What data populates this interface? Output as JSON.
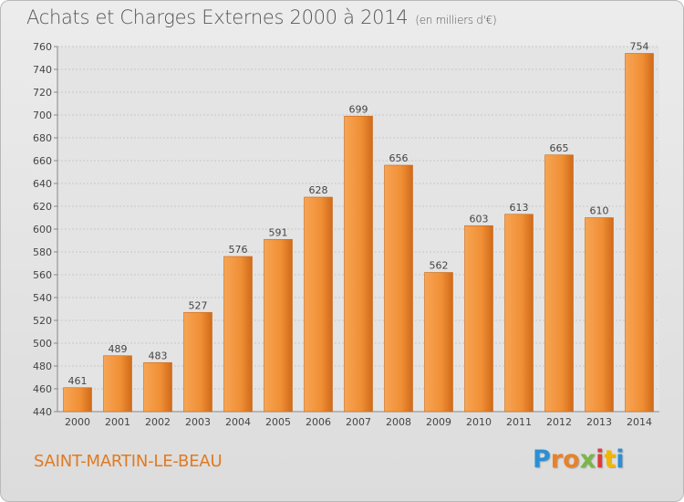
{
  "chart_data": {
    "type": "bar",
    "title": "Achats et Charges Externes 2000 à 2014",
    "subtitle": "(en milliers d'€)",
    "categories": [
      "2000",
      "2001",
      "2002",
      "2003",
      "2004",
      "2005",
      "2006",
      "2007",
      "2008",
      "2009",
      "2010",
      "2011",
      "2012",
      "2013",
      "2014"
    ],
    "values": [
      461,
      489,
      483,
      527,
      576,
      591,
      628,
      699,
      656,
      562,
      603,
      613,
      665,
      610,
      754
    ],
    "ylim": [
      440,
      760
    ],
    "yticks": [
      440,
      460,
      480,
      500,
      520,
      540,
      560,
      580,
      600,
      620,
      640,
      660,
      680,
      700,
      720,
      740,
      760
    ],
    "grid": true,
    "bar_color": "#f0953a"
  },
  "location": "SAINT-MARTIN-LE-BEAU",
  "logo": {
    "letters": [
      "P",
      "r",
      "o",
      "x",
      "i",
      "t",
      "i"
    ],
    "colors": [
      "#2b8fd6",
      "#e8822a",
      "#e8822a",
      "#7ab648",
      "#e23a3a",
      "#f2b600",
      "#2b8fd6"
    ]
  }
}
